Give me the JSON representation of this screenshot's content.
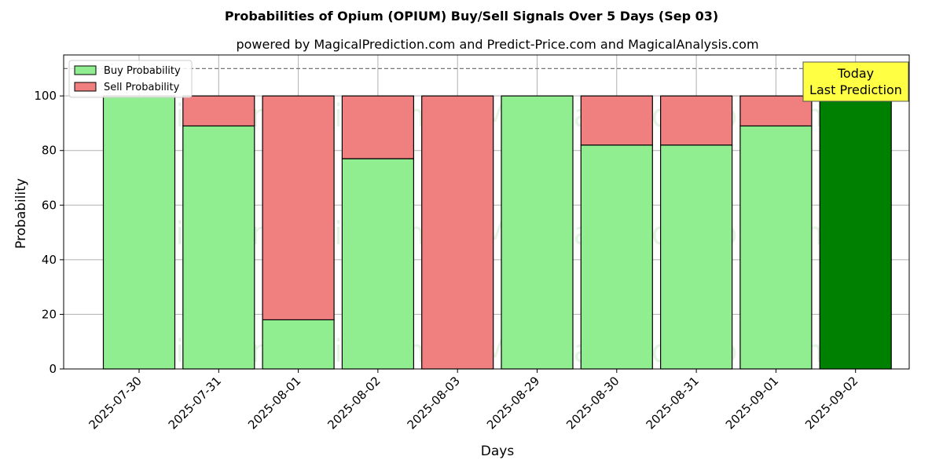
{
  "title": "Probabilities of Opium (OPIUM) Buy/Sell Signals Over 5 Days (Sep 03)",
  "subtitle": "powered by MagicalPrediction.com and Predict-Price.com and MagicalAnalysis.com",
  "watermarks": [
    "MagicalAnalysis.com",
    "MagicalPrediction.com"
  ],
  "today_box": {
    "line1": "Today",
    "line2": "Last Prediction",
    "color": "#ffff44"
  },
  "chart_data": {
    "type": "bar",
    "stacked": true,
    "categories": [
      "2025-07-30",
      "2025-07-31",
      "2025-08-01",
      "2025-08-02",
      "2025-08-03",
      "2025-08-29",
      "2025-08-30",
      "2025-08-31",
      "2025-09-01",
      "2025-09-02"
    ],
    "series": [
      {
        "name": "Buy Probability",
        "color": "#90ee90",
        "values": [
          100,
          89,
          18,
          77,
          0,
          100,
          82,
          82,
          89,
          100
        ]
      },
      {
        "name": "Sell Probability",
        "color": "#f08080",
        "values": [
          0,
          11,
          82,
          23,
          100,
          0,
          18,
          18,
          11,
          0
        ]
      }
    ],
    "highlight": {
      "index": 9,
      "color": "#008000"
    },
    "reference_line": {
      "y": 110,
      "style": "dashed"
    },
    "xlabel": "Days",
    "ylabel": "Probability",
    "ylim": [
      0,
      115
    ],
    "yticks": [
      0,
      20,
      40,
      60,
      80,
      100
    ],
    "grid": true,
    "legend": "top-left"
  }
}
